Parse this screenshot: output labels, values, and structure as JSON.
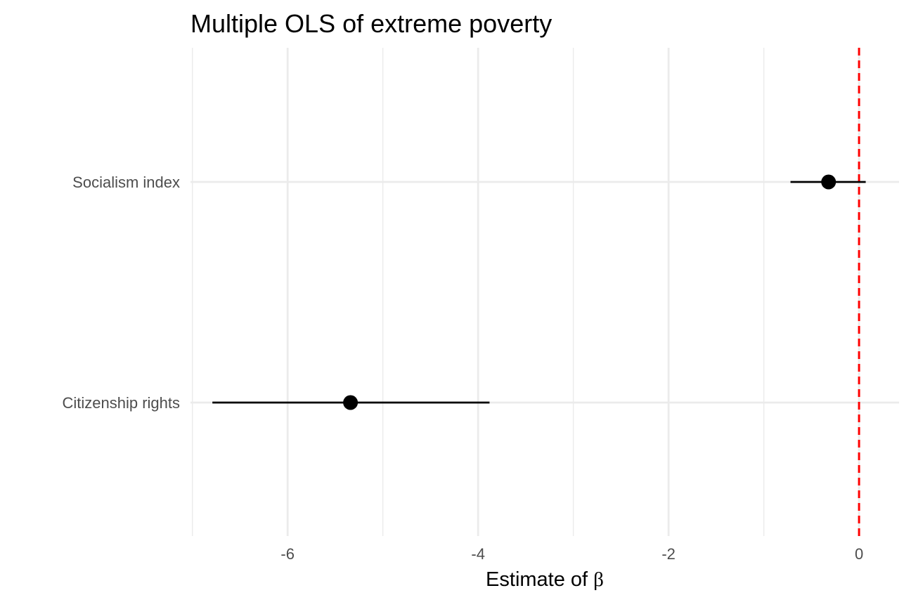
{
  "chart_data": {
    "type": "scatter",
    "title": "Multiple OLS of extreme poverty",
    "xlabel": "Estimate of",
    "xlabel_symbol": "β",
    "ylabel": "",
    "xlim": [
      -7.02,
      0.42
    ],
    "x_ticks": [
      -6,
      -4,
      -2,
      0
    ],
    "x_minor_ticks": [
      -7,
      -5,
      -3,
      -1
    ],
    "x_tick_labels": [
      "-6",
      "-4",
      "-2",
      "0"
    ],
    "categories": [
      "Socialism index",
      "Citizenship rights"
    ],
    "series": [
      {
        "points": [
          {
            "category": "Socialism index",
            "estimate": -0.32,
            "ci_low": -0.72,
            "ci_high": 0.07
          },
          {
            "category": "Citizenship rights",
            "estimate": -5.34,
            "ci_low": -6.79,
            "ci_high": -3.88
          }
        ]
      }
    ],
    "reference_line": {
      "x": 0,
      "style": "dashed",
      "color": "#ff0000"
    },
    "grid": true,
    "legend": "none",
    "colors": {
      "point": "#000000",
      "errorbar": "#000000",
      "grid": "#ebebeb",
      "reference": "#ff0000",
      "tick_text": "#4d4d4d",
      "title_text": "#000000"
    }
  }
}
